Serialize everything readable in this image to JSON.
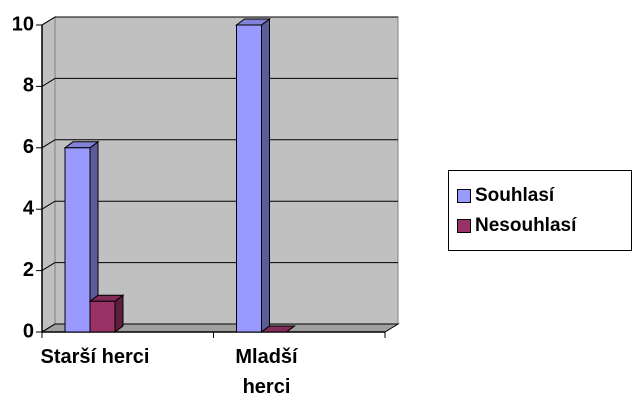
{
  "chart_data": {
    "type": "bar3d",
    "categories": [
      "Starší herci",
      "Mladší herci"
    ],
    "series": [
      {
        "name": "Souhlasí",
        "color": "#9999ff",
        "values": [
          6,
          10
        ]
      },
      {
        "name": "Nesouhlasí",
        "color": "#993366",
        "values": [
          1,
          0
        ]
      }
    ],
    "ylim": [
      0,
      10
    ],
    "yticks": [
      0,
      2,
      4,
      6,
      8,
      10
    ],
    "grid": true,
    "legend": "right"
  }
}
